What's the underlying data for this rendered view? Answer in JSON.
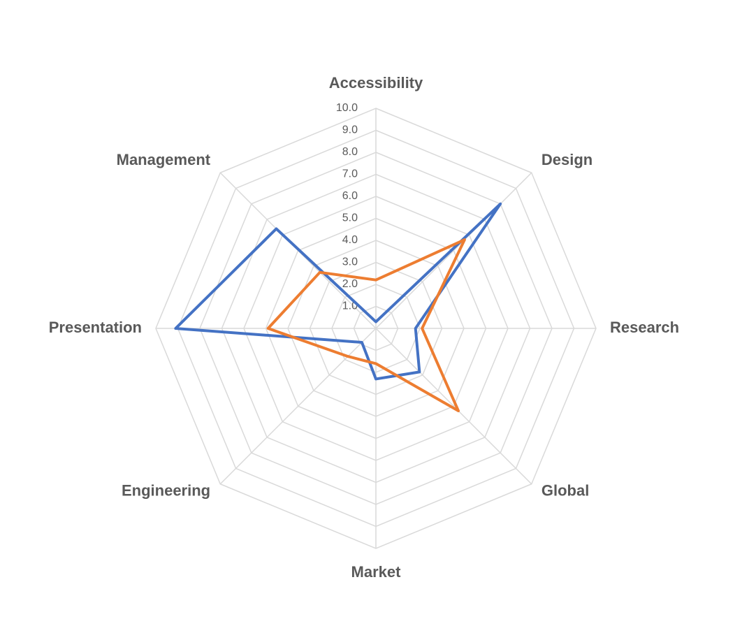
{
  "chart_data": {
    "type": "radar",
    "categories": [
      "Accessibility",
      "Design",
      "Research",
      "Global",
      "Market",
      "Engineering",
      "Presentation",
      "Management"
    ],
    "series": [
      {
        "color": "#4472c4",
        "values": [
          0.3,
          8.0,
          1.8,
          2.8,
          2.3,
          0.9,
          9.1,
          6.4
        ]
      },
      {
        "color": "#ed7d31",
        "values": [
          2.2,
          5.7,
          2.1,
          5.3,
          1.6,
          1.8,
          4.9,
          3.6
        ]
      }
    ],
    "rlim": [
      0,
      10
    ],
    "rticks": [
      {
        "value": 1,
        "label": "1.0"
      },
      {
        "value": 2,
        "label": "2.0"
      },
      {
        "value": 3,
        "label": "3.0"
      },
      {
        "value": 4,
        "label": "4.0"
      },
      {
        "value": 5,
        "label": "5.0"
      },
      {
        "value": 6,
        "label": "6.0"
      },
      {
        "value": 7,
        "label": "7.0"
      },
      {
        "value": 8,
        "label": "8.0"
      },
      {
        "value": 9,
        "label": "9.0"
      },
      {
        "value": 10,
        "label": "10.0"
      }
    ],
    "grid": true
  }
}
